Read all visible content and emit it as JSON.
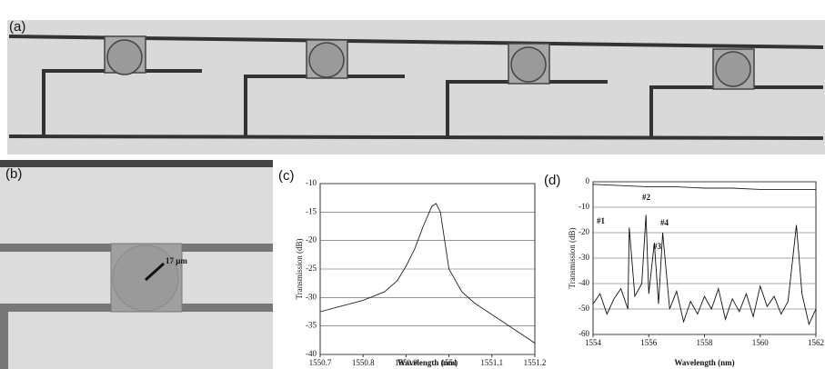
{
  "panels": {
    "a": "(a)",
    "b": "(b)",
    "b_scale": "17 µm",
    "c": "(c)",
    "d": "(d)"
  },
  "chart_data": [
    {
      "type": "line",
      "x_label": "Wavelength (nm)",
      "y_label": "Transmission (dB)",
      "xlim": [
        1550.7,
        1551.2
      ],
      "xticks": [
        1550.7,
        1550.8,
        1550.9,
        1551,
        1551.1,
        1551.2
      ],
      "ylim": [
        -40,
        -10
      ],
      "yticks": [
        -10,
        -15,
        -20,
        -25,
        -30,
        -35,
        -40
      ],
      "grid": true,
      "series": [
        {
          "color": "#222",
          "x": [
            1550.7,
            1550.75,
            1550.8,
            1550.85,
            1550.88,
            1550.9,
            1550.92,
            1550.94,
            1550.96,
            1550.97,
            1550.98,
            1550.99,
            1551.0,
            1551.03,
            1551.06,
            1551.1,
            1551.15,
            1551.2
          ],
          "values": [
            -32.5,
            -31.5,
            -30.5,
            -29,
            -27,
            -24.5,
            -21.5,
            -17.5,
            -14,
            -13.5,
            -15,
            -20,
            -25,
            -29,
            -31,
            -33,
            -35.5,
            -38
          ]
        }
      ]
    },
    {
      "type": "line",
      "x_label": "Wavelength (nm)",
      "y_label": "Transmission (dB)",
      "xlim": [
        1554,
        1562
      ],
      "xticks": [
        1554,
        1556,
        1558,
        1560,
        1562
      ],
      "ylim": [
        -60,
        0
      ],
      "yticks": [
        0,
        -10,
        -20,
        -30,
        -40,
        -50,
        -60
      ],
      "grid": true,
      "annotations": [
        "#1",
        "#2",
        "#3",
        "#4"
      ],
      "series": [
        {
          "color": "#222",
          "x": [
            1554,
            1555,
            1556,
            1557,
            1558,
            1559,
            1560,
            1561,
            1562
          ],
          "values": [
            -1,
            -1.5,
            -2,
            -2,
            -2.5,
            -2.5,
            -3,
            -3,
            -3
          ]
        },
        {
          "color": "#111",
          "x": [
            1554,
            1554.25,
            1554.5,
            1554.75,
            1555,
            1555.25,
            1555.3,
            1555.5,
            1555.75,
            1555.9,
            1556,
            1556.2,
            1556.35,
            1556.5,
            1556.75,
            1557,
            1557.25,
            1557.5,
            1557.75,
            1558,
            1558.25,
            1558.5,
            1558.75,
            1559,
            1559.25,
            1559.5,
            1559.75,
            1560,
            1560.25,
            1560.5,
            1560.75,
            1561,
            1561.3,
            1561.5,
            1561.75,
            1562
          ],
          "values": [
            -48,
            -44,
            -52,
            -46,
            -42,
            -50,
            -18,
            -45,
            -40,
            -13,
            -44,
            -24,
            -48,
            -20,
            -50,
            -43,
            -55,
            -47,
            -52,
            -45,
            -50,
            -42,
            -54,
            -46,
            -51,
            -44,
            -53,
            -41,
            -49,
            -45,
            -52,
            -47,
            -17,
            -44,
            -56,
            -50
          ]
        }
      ]
    }
  ]
}
